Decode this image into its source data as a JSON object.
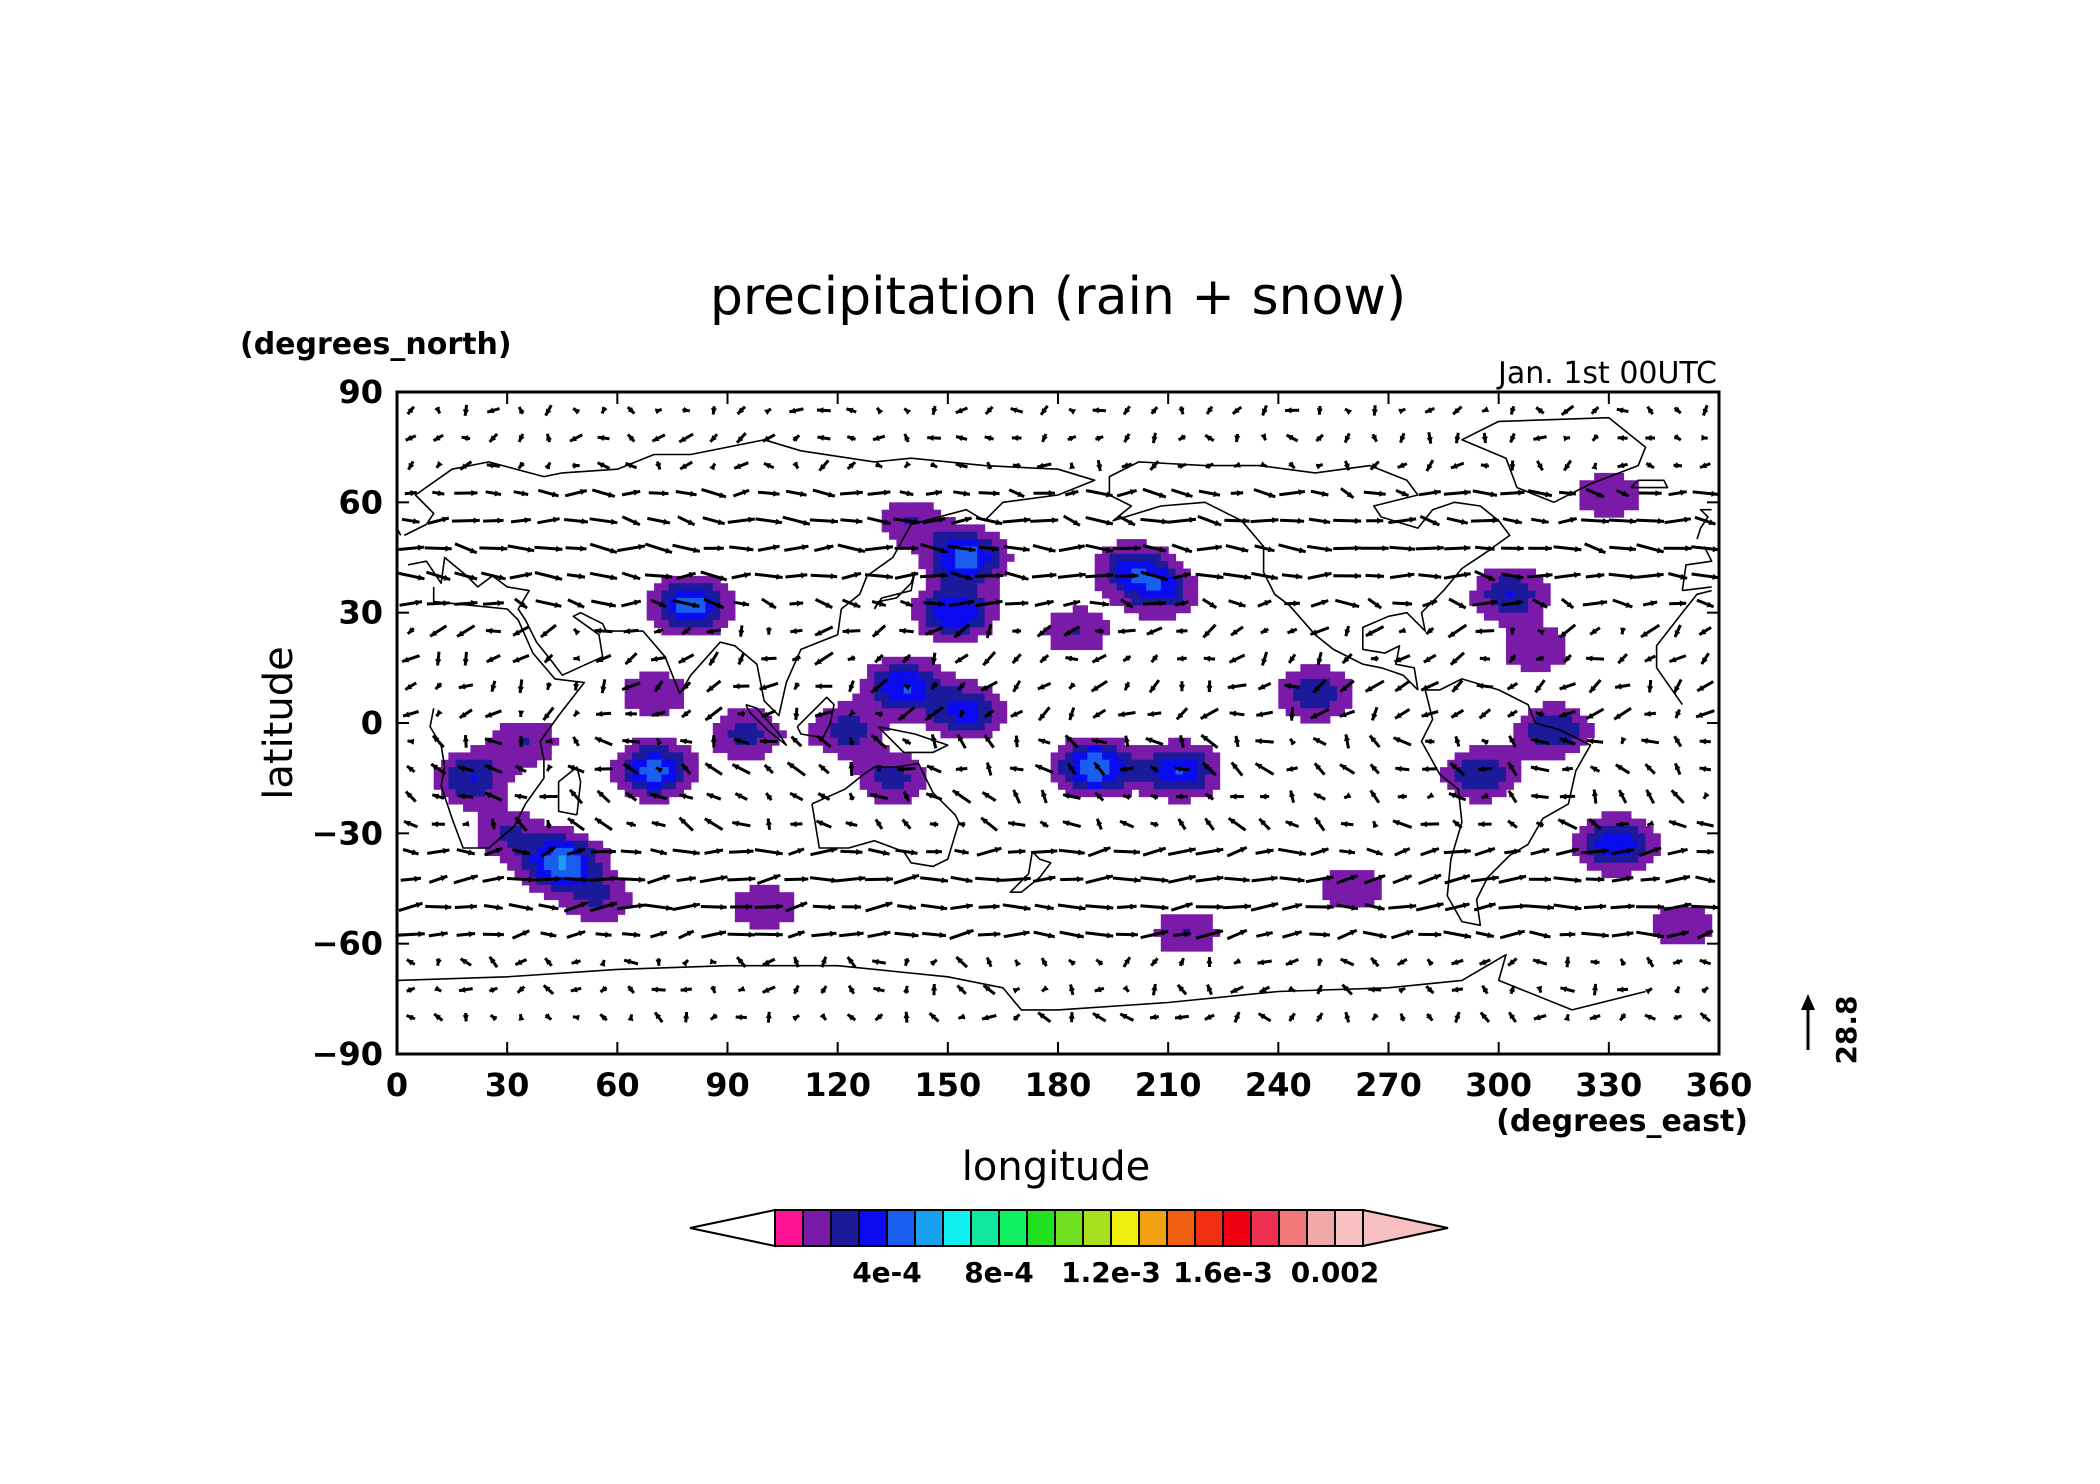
{
  "chart_data": {
    "type": "heatmap",
    "title": "precipitation (rain + snow)",
    "xlabel": "longitude",
    "ylabel": "latitude",
    "x_unit": "(degrees_east)",
    "y_unit": "(degrees_north)",
    "time_label": "Jan. 1st 00UTC",
    "xlim": [
      0,
      360
    ],
    "ylim": [
      -90,
      90
    ],
    "xticks": [
      0,
      30,
      60,
      90,
      120,
      150,
      180,
      210,
      240,
      270,
      300,
      330,
      360
    ],
    "yticks": [
      -90,
      -60,
      -30,
      0,
      30,
      60,
      90
    ],
    "ytick_labels": [
      "−90",
      "−60",
      "−30",
      "0",
      "30",
      "60",
      "90"
    ],
    "vector_reference": {
      "label": "28.8"
    },
    "colorbar": {
      "levels": [
        0.0001,
        0.0002,
        0.0003,
        0.0004,
        0.0005,
        0.0006,
        0.0007,
        0.0008,
        0.0009,
        0.001,
        0.0011,
        0.0012,
        0.0013,
        0.0014,
        0.0015,
        0.0016,
        0.0017,
        0.0018,
        0.0019,
        0.002
      ],
      "colors": [
        "#ff1493",
        "#7a1aa8",
        "#1a1a9a",
        "#0b0bf0",
        "#1a5ef0",
        "#1aa0f0",
        "#10f0f0",
        "#10e8a0",
        "#10f060",
        "#20e020",
        "#70e020",
        "#a8e020",
        "#f0f010",
        "#f0a010",
        "#f06010",
        "#f03010",
        "#f00010",
        "#f03050",
        "#f07878",
        "#f0a8a8",
        "#f8c0c0"
      ],
      "under_color": "#ffffff",
      "over_color": "#f8c0c0",
      "labels": [
        "4e-4",
        "8e-4",
        "1.2e-3",
        "1.6e-3",
        "0.002"
      ],
      "label_values": [
        0.0004,
        0.0008,
        0.0012,
        0.0016,
        0.002
      ]
    },
    "precip_features": [
      {
        "lon": 80,
        "lat": 32,
        "peak": 0.00045
      },
      {
        "lon": 70,
        "lat": -13,
        "peak": 0.00045
      },
      {
        "lon": 95,
        "lat": -3,
        "peak": 0.00025
      },
      {
        "lon": 122,
        "lat": -2,
        "peak": 0.00025
      },
      {
        "lon": 138,
        "lat": 10,
        "peak": 0.0004
      },
      {
        "lon": 155,
        "lat": 45,
        "peak": 0.00045
      },
      {
        "lon": 152,
        "lat": 30,
        "peak": 0.0004
      },
      {
        "lon": 155,
        "lat": 3,
        "peak": 0.00035
      },
      {
        "lon": 190,
        "lat": -12,
        "peak": 0.0005
      },
      {
        "lon": 213,
        "lat": -13,
        "peak": 0.0004
      },
      {
        "lon": 200,
        "lat": 42,
        "peak": 0.0003
      },
      {
        "lon": 208,
        "lat": 36,
        "peak": 0.0003
      },
      {
        "lon": 45,
        "lat": -38,
        "peak": 0.0005
      },
      {
        "lon": 332,
        "lat": -33,
        "peak": 0.0004
      },
      {
        "lon": 303,
        "lat": 35,
        "peak": 0.0003
      },
      {
        "lon": 20,
        "lat": -15,
        "peak": 0.0003
      },
      {
        "lon": 250,
        "lat": 8,
        "peak": 0.0003
      },
      {
        "lon": 295,
        "lat": -14,
        "peak": 0.0003
      },
      {
        "lon": 315,
        "lat": -2,
        "peak": 0.0003
      },
      {
        "lon": 135,
        "lat": -15,
        "peak": 0.00025
      },
      {
        "lon": 55,
        "lat": -48,
        "peak": 0.0002
      },
      {
        "lon": 100,
        "lat": -50,
        "peak": 0.0002
      },
      {
        "lon": 215,
        "lat": -57,
        "peak": 0.0002
      },
      {
        "lon": 350,
        "lat": -55,
        "peak": 0.0002
      },
      {
        "lon": 260,
        "lat": -45,
        "peak": 0.0002
      },
      {
        "lon": 310,
        "lat": 20,
        "peak": 0.0002
      },
      {
        "lon": 330,
        "lat": 62,
        "peak": 0.0002
      },
      {
        "lon": 140,
        "lat": 55,
        "peak": 0.0002
      },
      {
        "lon": 185,
        "lat": 25,
        "peak": 0.0002
      },
      {
        "lon": 30,
        "lat": -30,
        "peak": 0.0002
      },
      {
        "lon": 35,
        "lat": -5,
        "peak": 0.0002
      },
      {
        "lon": 70,
        "lat": 8,
        "peak": 0.0002
      }
    ]
  }
}
